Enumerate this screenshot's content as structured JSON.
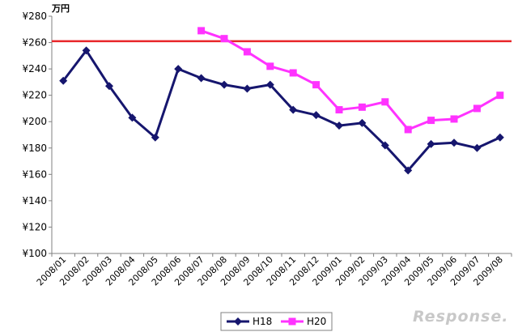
{
  "chart_data": {
    "type": "line",
    "unit_label": "万円",
    "categories": [
      "2008/01",
      "2008/02",
      "2008/03",
      "2008/04",
      "2008/05",
      "2008/06",
      "2008/07",
      "2008/08",
      "2008/09",
      "2008/10",
      "2008/11",
      "2008/12",
      "2009/01",
      "2009/02",
      "2009/03",
      "2009/04",
      "2009/05",
      "2009/06",
      "2009/07",
      "2009/08"
    ],
    "ylim": [
      100,
      280
    ],
    "yticks": [
      100,
      120,
      140,
      160,
      180,
      200,
      220,
      240,
      260,
      280
    ],
    "ytick_labels": [
      "¥100",
      "¥120",
      "¥140",
      "¥160",
      "¥180",
      "¥200",
      "¥220",
      "¥240",
      "¥260",
      "¥280"
    ],
    "reference_line": {
      "value": 261,
      "color": "#e8262a"
    },
    "grid": false,
    "legend_position": "bottom",
    "series": [
      {
        "name": "H18",
        "color": "#16166e",
        "marker": "diamond",
        "values": [
          231,
          254,
          227,
          203,
          188,
          240,
          233,
          228,
          225,
          228,
          209,
          205,
          197,
          199,
          182,
          163,
          183,
          184,
          180,
          188
        ]
      },
      {
        "name": "H20",
        "color": "#ff33ff",
        "marker": "square",
        "values": [
          null,
          null,
          null,
          null,
          null,
          null,
          269,
          263,
          253,
          242,
          237,
          228,
          209,
          211,
          215,
          194,
          201,
          202,
          210,
          220
        ]
      }
    ]
  },
  "watermark": "Response."
}
